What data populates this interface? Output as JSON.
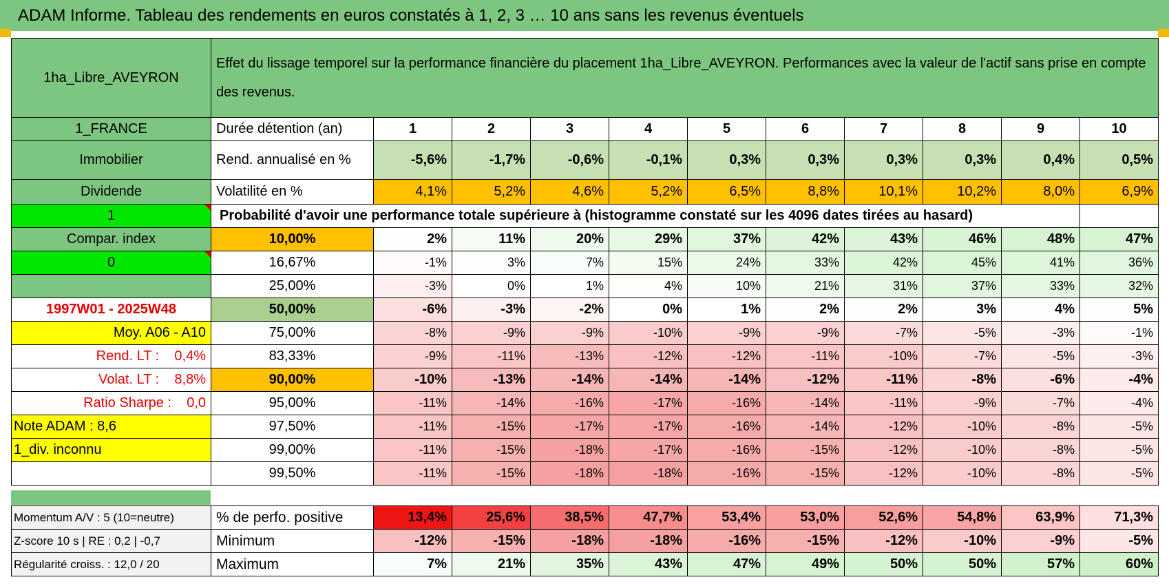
{
  "banner": "ADAM Informe. Tableau des rendements en euros constatés à 1, 2, 3 … 10 ans sans les revenus éventuels",
  "asset_name": "1ha_Libre_AVEYRON",
  "description": "Effet du lissage temporel sur la performance financière du placement 1ha_Libre_AVEYRON. Performances avec la valeur de l'actif sans prise en compte des revenus.",
  "left": {
    "country": "1_FRANCE",
    "category": "Immobilier",
    "type": "Dividende",
    "input1": "1",
    "compar_index": "Compar. index",
    "input2": "0",
    "period": "1997W01 - 2025W48",
    "moy": "Moy. A06 - A10",
    "rend_lt": "Rend. LT :    0,4%",
    "volat_lt": "Volat. LT :    8,8%",
    "sharpe": "Ratio Sharpe :    0,0",
    "note": "Note ADAM : 8,6",
    "div": "1_div. inconnu"
  },
  "duration_label": "Durée détention (an)",
  "years": [
    "1",
    "2",
    "3",
    "4",
    "5",
    "6",
    "7",
    "8",
    "9",
    "10"
  ],
  "rend": {
    "label": "Rend. annualisé en %",
    "values": [
      "-5,6%",
      "-1,7%",
      "-0,6%",
      "-0,1%",
      "0,3%",
      "0,3%",
      "0,3%",
      "0,3%",
      "0,4%",
      "0,5%"
    ]
  },
  "volat": {
    "label": "Volatilité en %",
    "values": [
      "4,1%",
      "5,2%",
      "4,6%",
      "5,2%",
      "6,5%",
      "8,8%",
      "10,1%",
      "10,2%",
      "8,0%",
      "6,9%"
    ]
  },
  "proba_title": "Probabilité d'avoir une performance totale supérieure à (histogramme constaté sur les 4096 dates tirées au hasard)",
  "percentiles": [
    {
      "p": "10,00%",
      "values": [
        "2%",
        "11%",
        "20%",
        "29%",
        "37%",
        "42%",
        "43%",
        "46%",
        "48%",
        "47%"
      ]
    },
    {
      "p": "16,67%",
      "values": [
        "-1%",
        "3%",
        "7%",
        "15%",
        "24%",
        "33%",
        "42%",
        "45%",
        "41%",
        "36%"
      ]
    },
    {
      "p": "25,00%",
      "values": [
        "-3%",
        "0%",
        "1%",
        "4%",
        "10%",
        "21%",
        "31%",
        "37%",
        "33%",
        "32%"
      ]
    },
    {
      "p": "50,00%",
      "values": [
        "-6%",
        "-3%",
        "-2%",
        "0%",
        "1%",
        "2%",
        "2%",
        "3%",
        "4%",
        "5%"
      ]
    },
    {
      "p": "75,00%",
      "values": [
        "-8%",
        "-9%",
        "-9%",
        "-10%",
        "-9%",
        "-9%",
        "-7%",
        "-5%",
        "-3%",
        "-1%"
      ]
    },
    {
      "p": "83,33%",
      "values": [
        "-9%",
        "-11%",
        "-13%",
        "-12%",
        "-12%",
        "-11%",
        "-10%",
        "-7%",
        "-5%",
        "-3%"
      ]
    },
    {
      "p": "90,00%",
      "values": [
        "-10%",
        "-13%",
        "-14%",
        "-14%",
        "-14%",
        "-12%",
        "-11%",
        "-8%",
        "-6%",
        "-4%"
      ]
    },
    {
      "p": "95,00%",
      "values": [
        "-11%",
        "-14%",
        "-16%",
        "-17%",
        "-16%",
        "-14%",
        "-11%",
        "-9%",
        "-7%",
        "-4%"
      ]
    },
    {
      "p": "97,50%",
      "values": [
        "-11%",
        "-15%",
        "-17%",
        "-17%",
        "-16%",
        "-14%",
        "-12%",
        "-10%",
        "-8%",
        "-5%"
      ]
    },
    {
      "p": "99,00%",
      "values": [
        "-11%",
        "-15%",
        "-18%",
        "-17%",
        "-16%",
        "-15%",
        "-12%",
        "-10%",
        "-8%",
        "-5%"
      ]
    },
    {
      "p": "99,50%",
      "values": [
        "-11%",
        "-15%",
        "-18%",
        "-18%",
        "-16%",
        "-15%",
        "-12%",
        "-10%",
        "-8%",
        "-5%"
      ]
    }
  ],
  "bottom": [
    {
      "left": "Momentum A/V : 5 (10=neutre)",
      "label": "% de perfo. positive",
      "values": [
        "13,4%",
        "25,6%",
        "38,5%",
        "47,7%",
        "53,4%",
        "53,0%",
        "52,6%",
        "54,8%",
        "63,9%",
        "71,3%"
      ]
    },
    {
      "left": "Z-score 10 s | RE : 0,2 | -0,7",
      "label": "Minimum",
      "values": [
        "-12%",
        "-15%",
        "-18%",
        "-18%",
        "-16%",
        "-15%",
        "-12%",
        "-10%",
        "-9%",
        "-5%"
      ]
    },
    {
      "left": "Régularité croiss. : 12,0 / 20",
      "label": "Maximum",
      "values": [
        "7%",
        "21%",
        "35%",
        "43%",
        "47%",
        "49%",
        "50%",
        "50%",
        "57%",
        "60%"
      ]
    }
  ],
  "colors": {
    "header_green": "#7dc67f",
    "lime": "#00e600",
    "yellow": "#ffff00",
    "orange": "#ffc000",
    "red_text": "#e60000"
  }
}
